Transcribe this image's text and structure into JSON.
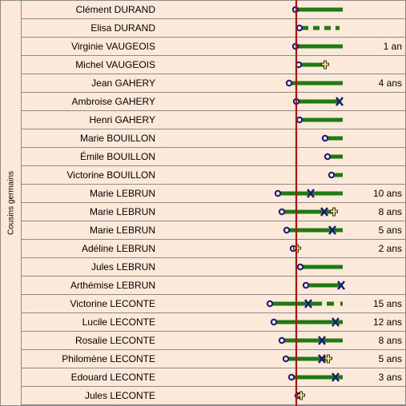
{
  "group_label": "Cousins germains",
  "colors": {
    "background": "#fde9d9",
    "bar": "#1e7a12",
    "birth_marker": "#1a1a7a",
    "death_marker": "#1a1a7a",
    "reference_line": "#d40000",
    "cross_fill": "#f5e27a"
  },
  "rows": [
    {
      "name": "Clément DURAND",
      "age": "",
      "start": 369,
      "end": 428,
      "style": "solid",
      "end_marker": "none"
    },
    {
      "name": "Elisa DURAND",
      "age": "",
      "start": 374,
      "end": 424,
      "style": "dashed",
      "end_marker": "none"
    },
    {
      "name": "Virginie VAUGEOIS",
      "age": "1 an",
      "start": 369,
      "end": 428,
      "style": "solid",
      "end_marker": "none"
    },
    {
      "name": "Michel VAUGEOIS",
      "age": "",
      "start": 373,
      "end": 406,
      "style": "solid",
      "end_marker": "cross"
    },
    {
      "name": "Jean GAHERY",
      "age": "4 ans",
      "start": 361,
      "end": 428,
      "style": "solid",
      "end_marker": "none"
    },
    {
      "name": "Ambroise GAHERY",
      "age": "",
      "start": 370,
      "end": 424,
      "style": "solid",
      "end_marker": "x"
    },
    {
      "name": "Henri GAHERY",
      "age": "",
      "start": 374,
      "end": 428,
      "style": "solid",
      "end_marker": "none"
    },
    {
      "name": "Marie BOUILLON",
      "age": "",
      "start": 406,
      "end": 428,
      "style": "solid",
      "end_marker": "none"
    },
    {
      "name": "Émile BOUILLON",
      "age": "",
      "start": 409,
      "end": 428,
      "style": "solid",
      "end_marker": "none"
    },
    {
      "name": "Victorine BOUILLON",
      "age": "",
      "start": 414,
      "end": 428,
      "style": "solid",
      "end_marker": "none"
    },
    {
      "name": "Marie LEBRUN",
      "age": "10 ans",
      "start": 347,
      "end": 428,
      "style": "solid",
      "end_marker": "x_mid",
      "mid": 388
    },
    {
      "name": "Marie LEBRUN",
      "age": "8 ans",
      "start": 352,
      "end": 417,
      "style": "solid",
      "end_marker": "x_cross",
      "mid": 405
    },
    {
      "name": "Marie LEBRUN",
      "age": "5 ans",
      "start": 358,
      "end": 428,
      "style": "solid",
      "end_marker": "x_mid",
      "mid": 415
    },
    {
      "name": "Adéline LEBRUN",
      "age": "2 ans",
      "start": 366,
      "end": 371,
      "style": "solid",
      "end_marker": "cross"
    },
    {
      "name": "Jules LEBRUN",
      "age": "",
      "start": 375,
      "end": 428,
      "style": "solid",
      "end_marker": "none"
    },
    {
      "name": "Arthémise LEBRUN",
      "age": "",
      "start": 382,
      "end": 426,
      "style": "solid",
      "end_marker": "x"
    },
    {
      "name": "Victorine LECONTE",
      "age": "15 ans",
      "start": 337,
      "end": 428,
      "style": "mixed",
      "end_marker": "x_mid",
      "mid": 385
    },
    {
      "name": "Lucile LECONTE",
      "age": "12 ans",
      "start": 342,
      "end": 428,
      "style": "solid",
      "end_marker": "x_mid",
      "mid": 419
    },
    {
      "name": "Rosalie LECONTE",
      "age": "8 ans",
      "start": 352,
      "end": 428,
      "style": "solid",
      "end_marker": "x_mid",
      "mid": 402
    },
    {
      "name": "Philomène LECONTE",
      "age": "5 ans",
      "start": 357,
      "end": 410,
      "style": "solid",
      "end_marker": "x_cross",
      "mid": 402
    },
    {
      "name": "Edouard LECONTE",
      "age": "3 ans",
      "start": 364,
      "end": 428,
      "style": "solid",
      "end_marker": "x_mid",
      "mid": 419
    },
    {
      "name": "Jules LECONTE",
      "age": "",
      "start": 372,
      "end": 376,
      "style": "solid",
      "end_marker": "cross"
    }
  ]
}
